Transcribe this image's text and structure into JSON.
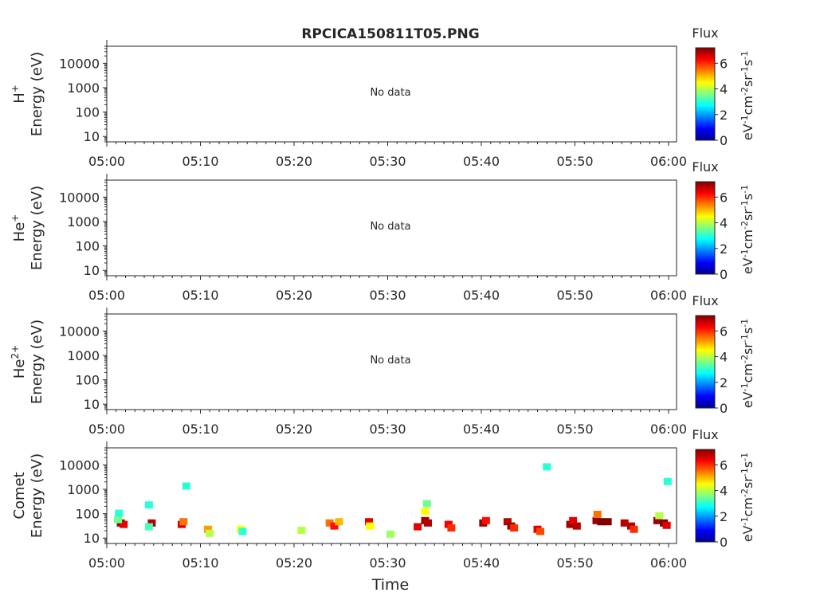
{
  "figure": {
    "title": "RPCICA150811T05.PNG",
    "xlabel": "Time"
  },
  "chart_data": [
    {
      "type": "heatmap",
      "species": "H",
      "species_superscript": "+",
      "ylabel": "Energy (eV)",
      "x_ticks": [
        "05:00",
        "05:10",
        "05:20",
        "05:30",
        "05:40",
        "05:50",
        "06:00"
      ],
      "xlim_minutes": [
        0,
        60
      ],
      "y_ticks": [
        "10",
        "100",
        "1000",
        "10000"
      ],
      "ylim": [
        6,
        50000
      ],
      "y_scale": "log",
      "annotation": "No data",
      "colorbar": {
        "label": "Flux",
        "unit": "eV",
        "ticks": [
          "0",
          "2",
          "4",
          "6"
        ],
        "range": [
          0,
          7.2
        ]
      },
      "cells": []
    },
    {
      "type": "heatmap",
      "species": "He",
      "species_superscript": "+",
      "ylabel": "Energy (eV)",
      "x_ticks": [
        "05:00",
        "05:10",
        "05:20",
        "05:30",
        "05:40",
        "05:50",
        "06:00"
      ],
      "xlim_minutes": [
        0,
        60
      ],
      "y_ticks": [
        "10",
        "100",
        "1000",
        "10000"
      ],
      "ylim": [
        6,
        50000
      ],
      "y_scale": "log",
      "annotation": "No data",
      "colorbar": {
        "label": "Flux",
        "unit": "eV",
        "ticks": [
          "0",
          "2",
          "4",
          "6"
        ],
        "range": [
          0,
          7.2
        ]
      },
      "cells": []
    },
    {
      "type": "heatmap",
      "species": "He",
      "species_superscript": "2+",
      "ylabel": "Energy (eV)",
      "x_ticks": [
        "05:00",
        "05:10",
        "05:20",
        "05:30",
        "05:40",
        "05:50",
        "06:00"
      ],
      "xlim_minutes": [
        0,
        60
      ],
      "y_ticks": [
        "10",
        "100",
        "1000",
        "10000"
      ],
      "ylim": [
        6,
        50000
      ],
      "y_scale": "log",
      "annotation": "No data",
      "colorbar": {
        "label": "Flux",
        "unit": "eV",
        "ticks": [
          "0",
          "2",
          "4",
          "6"
        ],
        "range": [
          0,
          7.2
        ]
      },
      "cells": []
    },
    {
      "type": "heatmap",
      "species": "Comet",
      "species_superscript": "",
      "ylabel": "Energy (eV)",
      "x_ticks": [
        "05:00",
        "05:10",
        "05:20",
        "05:30",
        "05:40",
        "05:50",
        "06:00"
      ],
      "xlim_minutes": [
        0,
        60
      ],
      "y_ticks": [
        "10",
        "100",
        "1000",
        "10000"
      ],
      "ylim": [
        6,
        50000
      ],
      "y_scale": "log",
      "annotation": "",
      "colorbar": {
        "label": "Flux",
        "unit": "eV",
        "ticks": [
          "0",
          "2",
          "4",
          "6"
        ],
        "range": [
          0,
          7.2
        ]
      },
      "cells": [
        {
          "t": 1.5,
          "e": 40,
          "v": 7.0
        },
        {
          "t": 1.8,
          "e": 35,
          "v": 6.5
        },
        {
          "t": 1.2,
          "e": 55,
          "v": 3.5
        },
        {
          "t": 1.3,
          "e": 100,
          "v": 3.0
        },
        {
          "t": 4.8,
          "e": 40,
          "v": 6.8
        },
        {
          "t": 4.5,
          "e": 28,
          "v": 3.2
        },
        {
          "t": 4.5,
          "e": 220,
          "v": 3.0
        },
        {
          "t": 8.0,
          "e": 35,
          "v": 6.6
        },
        {
          "t": 8.2,
          "e": 45,
          "v": 5.5
        },
        {
          "t": 8.5,
          "e": 1300,
          "v": 3.0
        },
        {
          "t": 10.8,
          "e": 22,
          "v": 5.2
        },
        {
          "t": 11.0,
          "e": 15,
          "v": 4.0
        },
        {
          "t": 14.3,
          "e": 22,
          "v": 4.5
        },
        {
          "t": 14.5,
          "e": 18,
          "v": 3.0
        },
        {
          "t": 20.8,
          "e": 20,
          "v": 4.0
        },
        {
          "t": 23.8,
          "e": 40,
          "v": 5.5
        },
        {
          "t": 24.3,
          "e": 30,
          "v": 6.2
        },
        {
          "t": 24.8,
          "e": 45,
          "v": 5.0
        },
        {
          "t": 28.0,
          "e": 45,
          "v": 6.5
        },
        {
          "t": 28.1,
          "e": 30,
          "v": 4.5
        },
        {
          "t": 30.3,
          "e": 14,
          "v": 3.8
        },
        {
          "t": 33.2,
          "e": 28,
          "v": 6.5
        },
        {
          "t": 34.0,
          "e": 50,
          "v": 7.0
        },
        {
          "t": 34.3,
          "e": 40,
          "v": 6.8
        },
        {
          "t": 34.0,
          "e": 120,
          "v": 4.5
        },
        {
          "t": 34.2,
          "e": 250,
          "v": 3.5
        },
        {
          "t": 36.5,
          "e": 35,
          "v": 6.4
        },
        {
          "t": 36.8,
          "e": 25,
          "v": 6.0
        },
        {
          "t": 40.2,
          "e": 40,
          "v": 7.0
        },
        {
          "t": 40.5,
          "e": 50,
          "v": 6.2
        },
        {
          "t": 42.8,
          "e": 45,
          "v": 6.8
        },
        {
          "t": 43.2,
          "e": 30,
          "v": 7.0
        },
        {
          "t": 43.5,
          "e": 25,
          "v": 6.0
        },
        {
          "t": 46.0,
          "e": 22,
          "v": 6.5
        },
        {
          "t": 46.3,
          "e": 18,
          "v": 5.8
        },
        {
          "t": 47.0,
          "e": 8000,
          "v": 3.0
        },
        {
          "t": 49.5,
          "e": 35,
          "v": 7.0
        },
        {
          "t": 49.8,
          "e": 50,
          "v": 6.5
        },
        {
          "t": 50.2,
          "e": 30,
          "v": 6.8
        },
        {
          "t": 52.3,
          "e": 50,
          "v": 7.0
        },
        {
          "t": 52.8,
          "e": 45,
          "v": 7.2
        },
        {
          "t": 53.5,
          "e": 45,
          "v": 7.2
        },
        {
          "t": 52.4,
          "e": 90,
          "v": 5.5
        },
        {
          "t": 55.3,
          "e": 40,
          "v": 6.8
        },
        {
          "t": 56.0,
          "e": 30,
          "v": 6.8
        },
        {
          "t": 56.3,
          "e": 22,
          "v": 6.0
        },
        {
          "t": 58.8,
          "e": 50,
          "v": 7.0
        },
        {
          "t": 59.5,
          "e": 40,
          "v": 7.2
        },
        {
          "t": 59.8,
          "e": 32,
          "v": 6.5
        },
        {
          "t": 59.0,
          "e": 80,
          "v": 4.0
        },
        {
          "t": 59.9,
          "e": 2000,
          "v": 3.0
        }
      ]
    }
  ]
}
